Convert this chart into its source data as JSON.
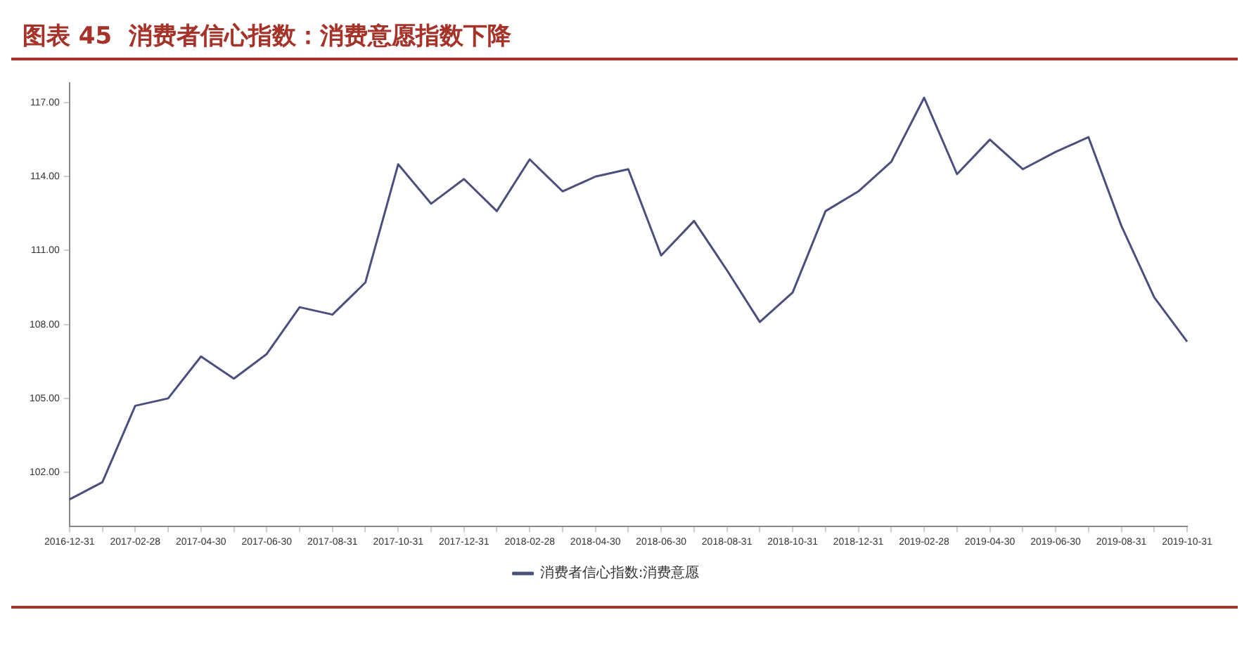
{
  "chart_data": {
    "type": "line",
    "title": "图表 45  消费者信心指数：消费意愿指数下降",
    "categories": [
      "2016-12-31",
      null,
      "2017-02-28",
      null,
      "2017-04-30",
      null,
      "2017-06-30",
      null,
      "2017-08-31",
      null,
      "2017-10-31",
      null,
      "2017-12-31",
      null,
      "2018-02-28",
      null,
      "2018-04-30",
      null,
      "2018-06-30",
      null,
      "2018-08-31",
      null,
      "2018-10-31",
      null,
      "2018-12-31",
      null,
      "2019-02-28",
      null,
      "2019-04-30",
      null,
      "2019-06-30",
      null,
      "2019-08-31",
      null,
      "2019-10-31"
    ],
    "series": [
      {
        "name": "消费者信心指数:消费意愿",
        "color": "#4b4f7c",
        "values": [
          100.9,
          101.6,
          104.7,
          105.0,
          106.7,
          105.8,
          106.8,
          108.7,
          108.4,
          109.7,
          114.5,
          112.9,
          113.9,
          112.6,
          114.7,
          113.4,
          114.0,
          114.3,
          110.8,
          112.2,
          110.2,
          108.1,
          109.3,
          112.6,
          113.4,
          114.6,
          117.2,
          114.1,
          115.5,
          114.3,
          115.0,
          115.6,
          112.0,
          109.1,
          107.3
        ]
      }
    ],
    "ylim": [
      99.8,
      117.8
    ],
    "yticks": [
      {
        "value": 102,
        "label": "102.00"
      },
      {
        "value": 105,
        "label": "105.00"
      },
      {
        "value": 108,
        "label": "108.00"
      },
      {
        "value": 111,
        "label": "111.00"
      },
      {
        "value": 114,
        "label": "114.00"
      },
      {
        "value": 117,
        "label": "117.00"
      }
    ],
    "grid": false,
    "legend": "bottom",
    "marker": "none",
    "line_style": "solid"
  }
}
